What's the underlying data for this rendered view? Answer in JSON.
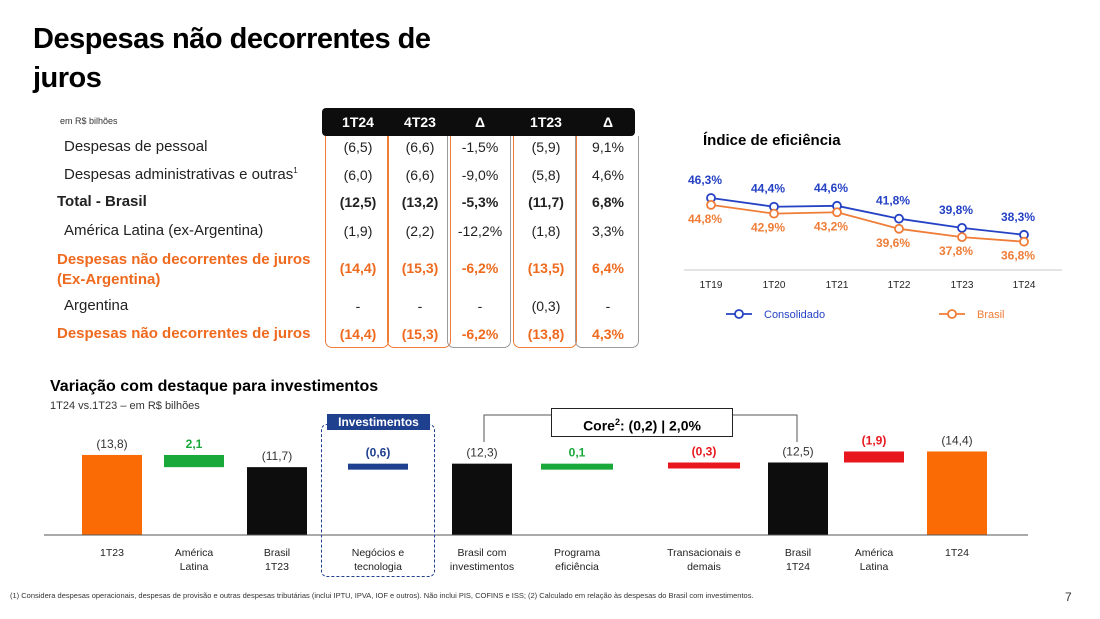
{
  "page": {
    "title": "Despesas não decorrentes de juros",
    "unit": "em R$ bilhões",
    "page_number": "7",
    "footnote": "(1) Considera despesas operacionais, despesas de provisão e outras despesas tributárias (inclui IPTU, IPVA, IOF e outros). Não inclui PIS, COFINS e ISS; (2) Calculado em relação às despesas do Brasil com investimentos."
  },
  "table": {
    "headers": [
      "1T24",
      "4T23",
      "Δ",
      "1T23",
      "Δ"
    ],
    "rows": [
      {
        "label": "Despesas de pessoal",
        "values": [
          "(6,5)",
          "(6,6)",
          "-1,5%",
          "(5,9)",
          "9,1%"
        ],
        "style": "normal",
        "indent": true
      },
      {
        "label": "Despesas administrativas e outras",
        "sup": "1",
        "values": [
          "(6,0)",
          "(6,6)",
          "-9,0%",
          "(5,8)",
          "4,6%"
        ],
        "style": "normal",
        "indent": true
      },
      {
        "label": "Total - Brasil",
        "values": [
          "(12,5)",
          "(13,2)",
          "-5,3%",
          "(11,7)",
          "6,8%"
        ],
        "style": "bold",
        "indent": false
      },
      {
        "label": "América Latina (ex-Argentina)",
        "values": [
          "(1,9)",
          "(2,2)",
          "-12,2%",
          "(1,8)",
          "3,3%"
        ],
        "style": "normal",
        "indent": true
      },
      {
        "label": "Despesas não decorrentes de juros",
        "label2": "(Ex-Argentina)",
        "values": [
          "(14,4)",
          "(15,3)",
          "-6,2%",
          "(13,5)",
          "6,4%"
        ],
        "style": "orange",
        "indent": false
      },
      {
        "label": "Argentina",
        "values": [
          "-",
          "-",
          "-",
          "(0,3)",
          "-"
        ],
        "style": "normal",
        "indent": true
      },
      {
        "label": "Despesas não decorrentes de juros",
        "values": [
          "(14,4)",
          "(15,3)",
          "-6,2%",
          "(13,8)",
          "4,3%"
        ],
        "style": "orange",
        "indent": false
      }
    ]
  },
  "colors": {
    "orange": "#ef6a1e",
    "bar_orange": "#fa6a05",
    "black": "#0d0d0d",
    "green": "#19a83a",
    "navy": "#1f3f8f",
    "red": "#e8171e",
    "blue": "#2542c4",
    "line_orange": "#ef7d38"
  },
  "chart_data": [
    {
      "type": "line",
      "title": "Índice de eficiência",
      "categories": [
        "1T19",
        "1T20",
        "1T21",
        "1T22",
        "1T23",
        "1T24"
      ],
      "series": [
        {
          "name": "Consolidado",
          "values": [
            46.3,
            44.4,
            44.6,
            41.8,
            39.8,
            38.3
          ],
          "labels": [
            "46,3%",
            "44,4%",
            "44,6%",
            "41,8%",
            "39,8%",
            "38,3%"
          ],
          "color": "#2542c4"
        },
        {
          "name": "Brasil",
          "values": [
            44.8,
            42.9,
            43.2,
            39.6,
            37.8,
            36.8
          ],
          "labels": [
            "44,8%",
            "42,9%",
            "43,2%",
            "39,6%",
            "37,8%",
            "36,8%"
          ],
          "color": "#ef7d38"
        }
      ],
      "legend_position": "bottom"
    },
    {
      "type": "bar",
      "title": "Variação com destaque para investimentos",
      "subtitle": "1T24 vs.1T23 – em R$ bilhões",
      "highlight_label": "Investimentos",
      "core_label": "Core",
      "core_sup": "2",
      "core_value": ": (0,2) | 2,0%",
      "categories": [
        "1T23",
        "América Latina",
        "Brasil 1T23",
        "Negócios e tecnologia",
        "Brasil com investimentos",
        "Programa eficiência",
        "Transacionais e demais",
        "Brasil 1T24",
        "América Latina",
        "1T24"
      ],
      "category_lines": [
        [
          "1T23"
        ],
        [
          "América",
          "Latina"
        ],
        [
          "Brasil",
          "1T23"
        ],
        [
          "Negócios e",
          "tecnologia"
        ],
        [
          "Brasil com",
          "investimentos"
        ],
        [
          "Programa",
          "eficiência"
        ],
        [
          "Transacionais e",
          "demais"
        ],
        [
          "Brasil",
          "1T24"
        ],
        [
          "América",
          "Latina"
        ],
        [
          "1T24"
        ]
      ],
      "values": [
        13.8,
        2.1,
        11.7,
        0.6,
        12.3,
        0.1,
        0.3,
        12.5,
        1.9,
        14.4
      ],
      "labels": [
        "(13,8)",
        "2,1",
        "(11,7)",
        "(0,6)",
        "(12,3)",
        "0,1",
        "(0,3)",
        "(12,5)",
        "(1,9)",
        "(14,4)"
      ],
      "kind": [
        "total",
        "delta",
        "total",
        "delta",
        "total",
        "delta",
        "delta",
        "total",
        "delta",
        "total"
      ],
      "colors": [
        "#fa6a05",
        "#19a83a",
        "#0d0d0d",
        "#1f3f8f",
        "#0d0d0d",
        "#19a83a",
        "#e8171e",
        "#0d0d0d",
        "#e8171e",
        "#fa6a05"
      ],
      "label_colors": [
        "#333333",
        "#19a83a",
        "#333333",
        "#1f3f8f",
        "#333333",
        "#19a83a",
        "#e8171e",
        "#333333",
        "#e8171e",
        "#333333"
      ]
    }
  ]
}
